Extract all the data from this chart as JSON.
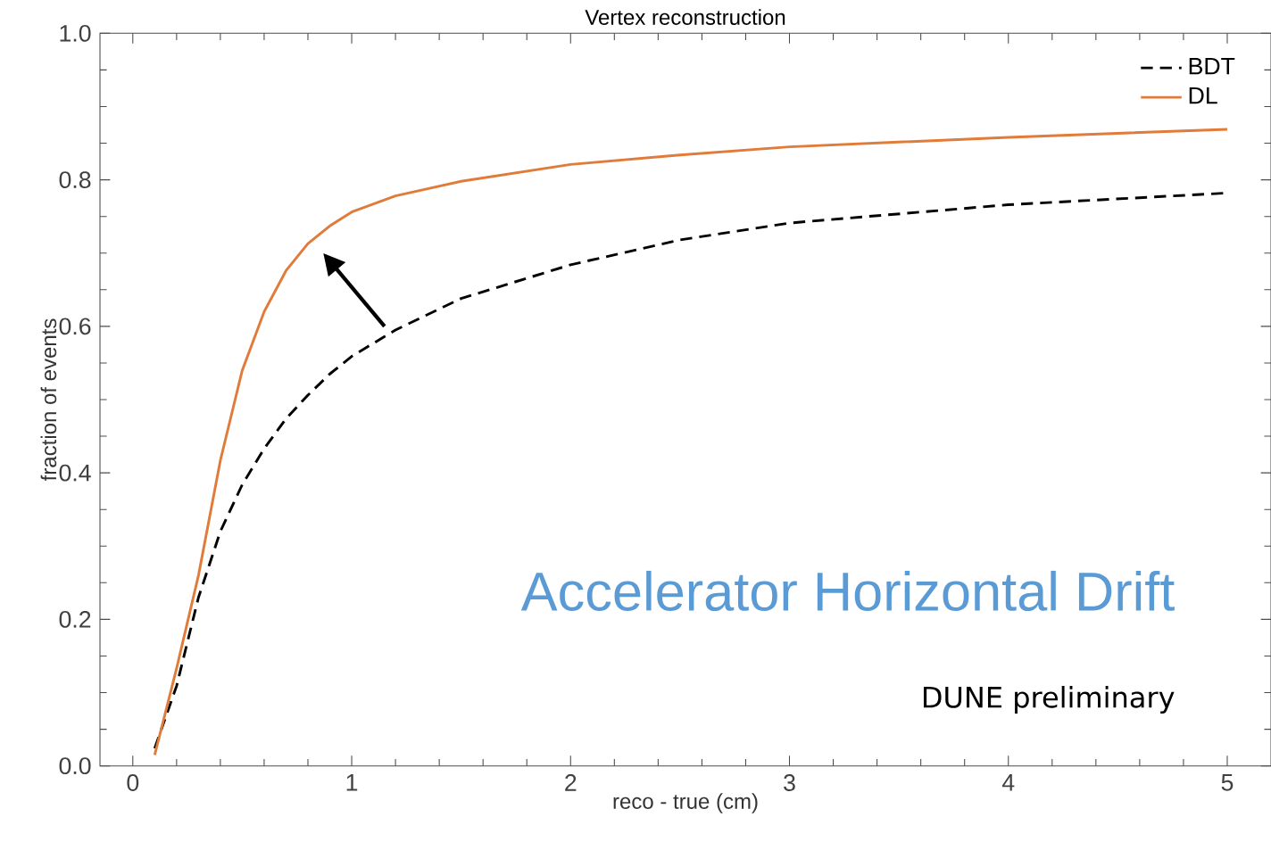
{
  "chart_data": {
    "type": "line",
    "title": "Vertex reconstruction",
    "xlabel": "reco - true (cm)",
    "ylabel": "fraction of events",
    "xlim": [
      -0.15,
      5.2
    ],
    "ylim": [
      0,
      1
    ],
    "xticks": [
      0,
      1,
      2,
      3,
      4,
      5
    ],
    "yticks": [
      {
        "value": 0,
        "label": "0.0"
      },
      0.2,
      0.4,
      0.6,
      0.8,
      {
        "value": 1,
        "label": "1.0"
      }
    ],
    "legend": "top right",
    "grid": false,
    "marker": "none",
    "x": [
      0.1,
      0.2,
      0.3,
      0.4,
      0.5,
      0.6,
      0.7,
      0.8,
      0.9,
      1.0,
      1.2,
      1.5,
      2.0,
      2.5,
      3.0,
      4.0,
      5.0
    ],
    "series": [
      {
        "name": "BDT",
        "color": "#000000",
        "line_style": "dashed",
        "values": [
          0.024,
          0.109,
          0.23,
          0.32,
          0.384,
          0.433,
          0.474,
          0.506,
          0.535,
          0.559,
          0.595,
          0.638,
          0.684,
          0.718,
          0.741,
          0.766,
          0.782
        ]
      },
      {
        "name": "DL",
        "color": "#e07b39",
        "line_style": "solid",
        "values": [
          0.015,
          0.133,
          0.26,
          0.417,
          0.54,
          0.62,
          0.676,
          0.713,
          0.737,
          0.756,
          0.778,
          0.798,
          0.821,
          0.834,
          0.845,
          0.858,
          0.869
        ]
      }
    ],
    "annotations": [
      "Accelerator  Horizontal Drift",
      "DUNE preliminary"
    ]
  }
}
